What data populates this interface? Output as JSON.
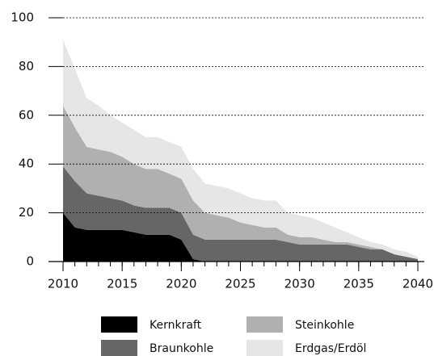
{
  "chart_data": {
    "type": "stacked_area",
    "x": [
      2010,
      2011,
      2012,
      2013,
      2014,
      2015,
      2016,
      2017,
      2018,
      2019,
      2020,
      2021,
      2022,
      2023,
      2024,
      2025,
      2026,
      2027,
      2028,
      2029,
      2030,
      2031,
      2032,
      2033,
      2034,
      2035,
      2036,
      2037,
      2038,
      2039,
      2040
    ],
    "series": [
      {
        "name": "Kernkraft",
        "color": "#000000",
        "values": [
          20,
          14,
          13,
          13,
          13,
          13,
          12,
          11,
          11,
          11,
          9,
          1,
          0,
          0,
          0,
          0,
          0,
          0,
          0,
          0,
          0,
          0,
          0,
          0,
          0,
          0,
          0,
          0,
          0,
          0,
          0
        ]
      },
      {
        "name": "Braunkohle",
        "color": "#666666",
        "values": [
          19,
          19,
          15,
          14,
          13,
          12,
          11,
          11,
          11,
          11,
          11,
          10,
          9,
          9,
          9,
          9,
          9,
          9,
          9,
          8,
          7,
          7,
          7,
          7,
          7,
          6,
          5,
          5,
          3,
          2,
          1
        ]
      },
      {
        "name": "Steinkohle",
        "color": "#b0b0b0",
        "values": [
          25,
          22,
          19,
          19,
          19,
          18,
          17,
          16,
          16,
          14,
          14,
          14,
          11,
          10,
          9,
          7,
          6,
          5,
          5,
          3,
          3,
          3,
          2,
          1,
          1,
          1,
          1,
          0,
          0,
          0,
          0
        ]
      },
      {
        "name": "Erdgas/Erdöl",
        "color": "#e6e6e6",
        "values": [
          27,
          24,
          20,
          18,
          15,
          14,
          14,
          13,
          13,
          13,
          13,
          13,
          12,
          12,
          12,
          12,
          11,
          11,
          11,
          9,
          9,
          8,
          7,
          6,
          4,
          3,
          2,
          2,
          2,
          2,
          1
        ]
      }
    ],
    "xlim": [
      2010,
      2040
    ],
    "xticks": [
      2010,
      2015,
      2020,
      2025,
      2030,
      2035,
      2040
    ],
    "ylim": [
      0,
      100
    ],
    "yticks": [
      0,
      20,
      40,
      60,
      80,
      100
    ],
    "grid": true
  }
}
